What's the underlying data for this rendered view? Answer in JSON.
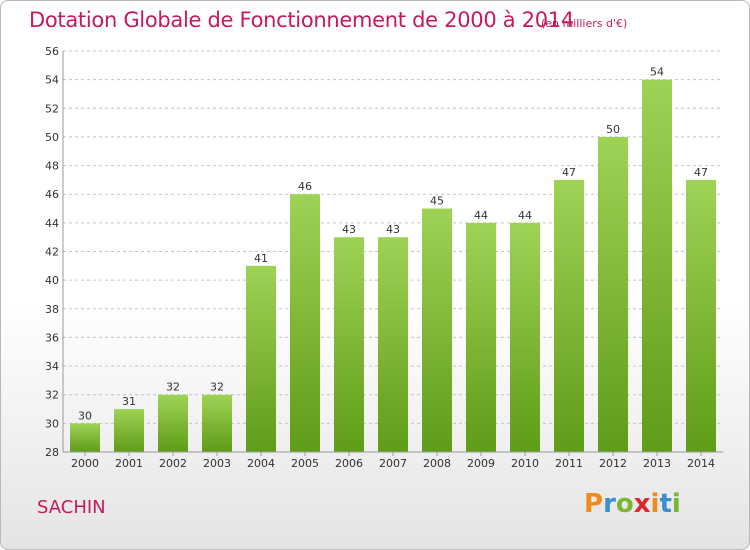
{
  "title": "Dotation Globale de Fonctionnement de 2000 à 2014",
  "subtitle": "(en milliers d'€)",
  "commune": "SACHIN",
  "logo": {
    "letters": [
      "P",
      "r",
      "o",
      "x",
      "i",
      "t",
      "i"
    ],
    "colors": [
      "#f08a1c",
      "#3a8fd0",
      "#7ab630",
      "#e2242b",
      "#f08a1c",
      "#3a8fd0",
      "#7ab630"
    ]
  },
  "colors": {
    "bar_top": "#9ed356",
    "bar_bottom": "#5f9c17",
    "accent": "#c8185e"
  },
  "chart_data": {
    "type": "bar",
    "categories": [
      "2000",
      "2001",
      "2002",
      "2003",
      "2004",
      "2005",
      "2006",
      "2007",
      "2008",
      "2009",
      "2010",
      "2011",
      "2012",
      "2013",
      "2014"
    ],
    "values": [
      30,
      31,
      32,
      32,
      41,
      46,
      43,
      43,
      45,
      44,
      44,
      47,
      50,
      54,
      47
    ],
    "title": "Dotation Globale de Fonctionnement de 2000 à 2014",
    "subtitle": "(en milliers d'€)",
    "xlabel": "",
    "ylabel": "",
    "ylim": [
      28,
      56
    ],
    "yticks": [
      28,
      30,
      32,
      34,
      36,
      38,
      40,
      42,
      44,
      46,
      48,
      50,
      52,
      54,
      56
    ],
    "grid": "horizontal-dashed",
    "legend": "none"
  }
}
